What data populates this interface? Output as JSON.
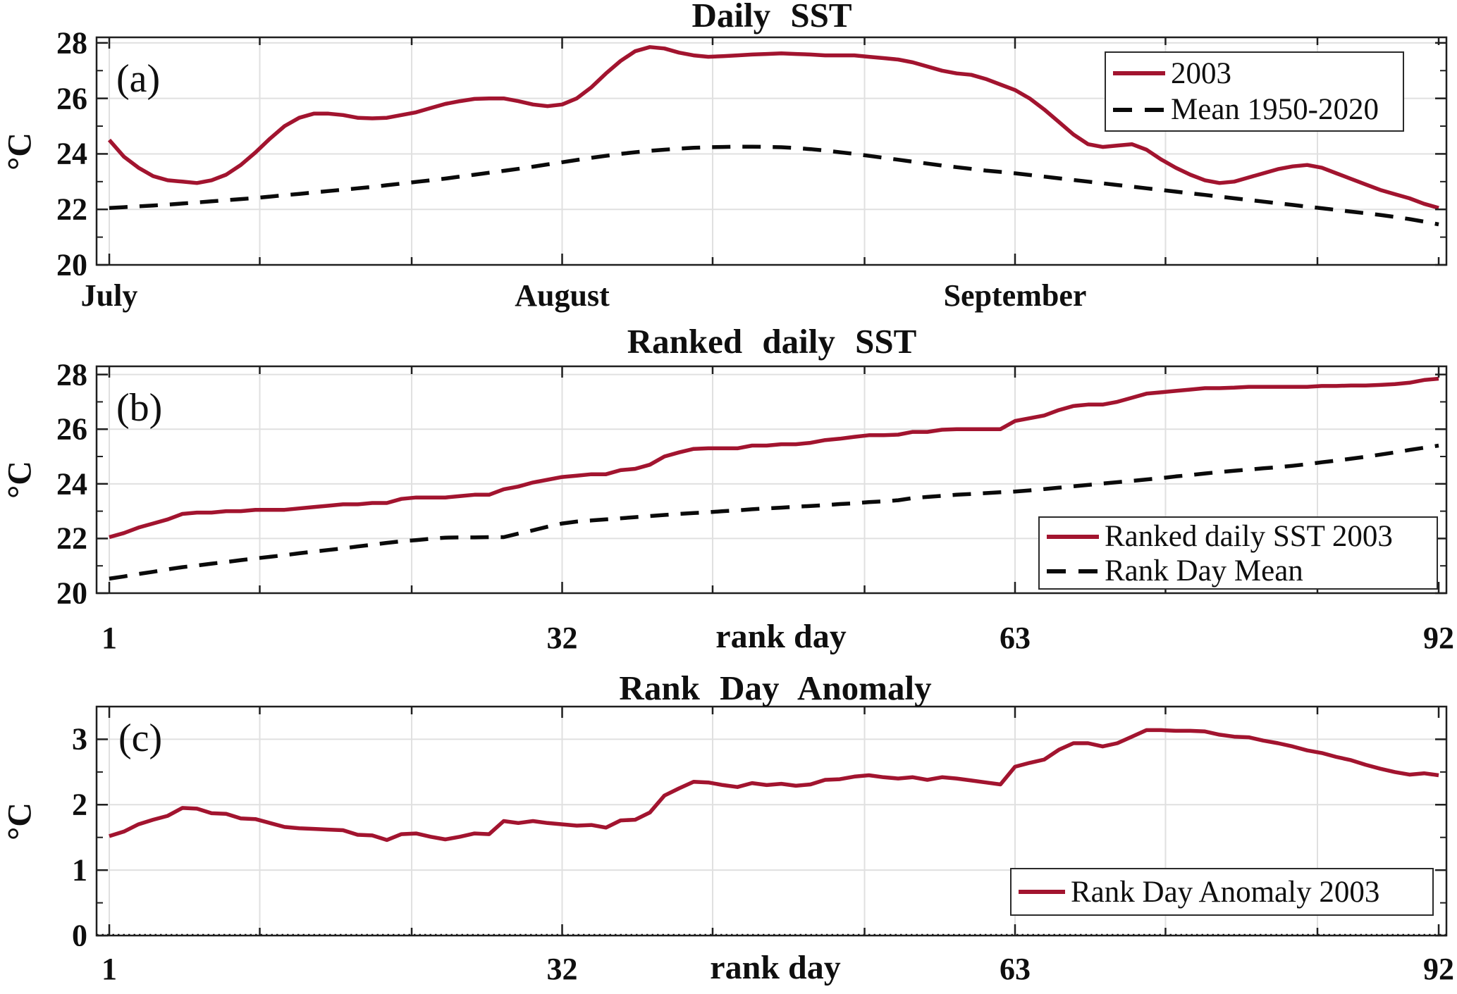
{
  "figure": {
    "background": "#ffffff",
    "accent_red": "#A2142F",
    "dashed_black": "#0a0a0a",
    "grid_color": "#e0e0e0",
    "frame_color": "#1f1f1f"
  },
  "chart_data": [
    {
      "type": "line",
      "panel_tag": "(a)",
      "title": "Daily SST",
      "ylabel": "°C",
      "xlabel": "",
      "ylim": [
        20,
        28.2
      ],
      "xlim": [
        0.13,
        92.53
      ],
      "grid": true,
      "legend_position": "upper-right",
      "x_unit": "day of season (July 1 = 1)",
      "xticks": [
        {
          "v": 1,
          "label": "July"
        },
        {
          "v": 32,
          "label": "August"
        },
        {
          "v": 63,
          "label": "September"
        }
      ],
      "yticks": [
        {
          "v": 20,
          "label": "20"
        },
        {
          "v": 22,
          "label": "22"
        },
        {
          "v": 24,
          "label": "24"
        },
        {
          "v": 26,
          "label": "26"
        },
        {
          "v": 28,
          "label": "28"
        }
      ],
      "xgrid": [
        1,
        11.3,
        21.7,
        32,
        42.3,
        52.7,
        63,
        73.3,
        83.7
      ],
      "yminor": [
        21,
        23,
        25,
        27
      ],
      "series": [
        {
          "name": "2003",
          "color": "#A2142F",
          "dash": false,
          "values": [
            24.5,
            23.9,
            23.5,
            23.2,
            23.05,
            23.0,
            22.95,
            23.05,
            23.25,
            23.6,
            24.05,
            24.55,
            25.0,
            25.3,
            25.45,
            25.45,
            25.4,
            25.3,
            25.28,
            25.3,
            25.4,
            25.5,
            25.65,
            25.8,
            25.9,
            25.98,
            26.0,
            26.0,
            25.9,
            25.78,
            25.72,
            25.78,
            26.0,
            26.4,
            26.9,
            27.35,
            27.7,
            27.85,
            27.8,
            27.65,
            27.55,
            27.5,
            27.52,
            27.55,
            27.58,
            27.6,
            27.62,
            27.6,
            27.58,
            27.55,
            27.55,
            27.55,
            27.5,
            27.45,
            27.4,
            27.3,
            27.15,
            27.0,
            26.9,
            26.85,
            26.7,
            26.5,
            26.3,
            26.0,
            25.6,
            25.15,
            24.7,
            24.35,
            24.25,
            24.3,
            24.35,
            24.15,
            23.8,
            23.5,
            23.25,
            23.05,
            22.95,
            23.0,
            23.15,
            23.3,
            23.45,
            23.55,
            23.6,
            23.5,
            23.3,
            23.1,
            22.9,
            22.7,
            22.55,
            22.4,
            22.2,
            22.05
          ]
        },
        {
          "name": "Mean 1950-2020",
          "color": "#0a0a0a",
          "dash": true,
          "values": [
            22.05,
            22.08,
            22.11,
            22.14,
            22.17,
            22.21,
            22.25,
            22.29,
            22.33,
            22.37,
            22.41,
            22.46,
            22.51,
            22.56,
            22.61,
            22.66,
            22.71,
            22.76,
            22.81,
            22.87,
            22.93,
            22.99,
            23.05,
            23.11,
            23.18,
            23.25,
            23.32,
            23.39,
            23.46,
            23.54,
            23.62,
            23.7,
            23.78,
            23.86,
            23.93,
            24.0,
            24.06,
            24.11,
            24.15,
            24.19,
            24.22,
            24.24,
            24.25,
            24.26,
            24.26,
            24.25,
            24.24,
            24.21,
            24.17,
            24.12,
            24.06,
            24.0,
            23.93,
            23.86,
            23.79,
            23.72,
            23.65,
            23.58,
            23.52,
            23.46,
            23.4,
            23.35,
            23.3,
            23.24,
            23.18,
            23.12,
            23.06,
            23.0,
            22.94,
            22.88,
            22.82,
            22.76,
            22.7,
            22.64,
            22.58,
            22.52,
            22.46,
            22.4,
            22.34,
            22.28,
            22.22,
            22.16,
            22.1,
            22.04,
            21.98,
            21.92,
            21.86,
            21.8,
            21.73,
            21.65,
            21.56,
            21.46
          ]
        }
      ]
    },
    {
      "type": "line",
      "panel_tag": "(b)",
      "title": "Ranked daily SST",
      "ylabel": "°C",
      "xlabel": "rank day",
      "ylim": [
        20,
        28.3
      ],
      "xlim": [
        0.13,
        92.53
      ],
      "grid": true,
      "legend_position": "lower-right",
      "x_unit": "rank day",
      "xticks": [
        {
          "v": 1,
          "label": "1"
        },
        {
          "v": 32,
          "label": "32"
        },
        {
          "v": 63,
          "label": "63"
        },
        {
          "v": 92,
          "label": "92"
        }
      ],
      "yticks": [
        {
          "v": 20,
          "label": "20"
        },
        {
          "v": 22,
          "label": "22"
        },
        {
          "v": 24,
          "label": "24"
        },
        {
          "v": 26,
          "label": "26"
        },
        {
          "v": 28,
          "label": "28"
        }
      ],
      "xgrid": [
        1,
        11.3,
        21.7,
        32,
        42.3,
        52.7,
        63,
        73.3,
        83.7
      ],
      "yminor": [
        21,
        23,
        25,
        27
      ],
      "series": [
        {
          "name": "Ranked daily SST 2003",
          "color": "#A2142F",
          "dash": false,
          "values": [
            22.05,
            22.2,
            22.4,
            22.55,
            22.7,
            22.9,
            22.95,
            22.95,
            23.0,
            23.0,
            23.05,
            23.05,
            23.05,
            23.1,
            23.15,
            23.2,
            23.25,
            23.25,
            23.3,
            23.3,
            23.45,
            23.5,
            23.5,
            23.5,
            23.55,
            23.6,
            23.6,
            23.8,
            23.9,
            24.05,
            24.15,
            24.25,
            24.3,
            24.35,
            24.35,
            24.5,
            24.55,
            24.7,
            25.0,
            25.15,
            25.28,
            25.3,
            25.3,
            25.3,
            25.4,
            25.4,
            25.45,
            25.45,
            25.5,
            25.6,
            25.65,
            25.72,
            25.78,
            25.78,
            25.8,
            25.9,
            25.9,
            25.98,
            26.0,
            26.0,
            26.0,
            26.0,
            26.3,
            26.4,
            26.5,
            26.7,
            26.85,
            26.9,
            26.9,
            27.0,
            27.15,
            27.3,
            27.35,
            27.4,
            27.45,
            27.5,
            27.5,
            27.52,
            27.55,
            27.55,
            27.55,
            27.55,
            27.55,
            27.58,
            27.58,
            27.6,
            27.6,
            27.62,
            27.65,
            27.7,
            27.8,
            27.85
          ]
        },
        {
          "name": "Rank Day Mean",
          "color": "#0a0a0a",
          "dash": true,
          "values": [
            20.53,
            20.61,
            20.7,
            20.78,
            20.87,
            20.95,
            21.01,
            21.08,
            21.14,
            21.21,
            21.27,
            21.33,
            21.39,
            21.46,
            21.52,
            21.58,
            21.64,
            21.71,
            21.77,
            21.84,
            21.9,
            21.94,
            21.99,
            22.03,
            22.04,
            22.04,
            22.05,
            22.05,
            22.18,
            22.3,
            22.43,
            22.55,
            22.62,
            22.66,
            22.7,
            22.74,
            22.78,
            22.82,
            22.86,
            22.9,
            22.93,
            22.96,
            23.0,
            23.03,
            23.07,
            23.1,
            23.13,
            23.16,
            23.19,
            23.22,
            23.26,
            23.29,
            23.33,
            23.36,
            23.4,
            23.48,
            23.52,
            23.56,
            23.6,
            23.63,
            23.66,
            23.69,
            23.72,
            23.76,
            23.81,
            23.86,
            23.91,
            23.96,
            24.01,
            24.06,
            24.11,
            24.16,
            24.21,
            24.27,
            24.32,
            24.38,
            24.43,
            24.48,
            24.52,
            24.57,
            24.61,
            24.66,
            24.72,
            24.79,
            24.85,
            24.92,
            24.99,
            25.07,
            25.15,
            25.24,
            25.32,
            25.4
          ]
        }
      ]
    },
    {
      "type": "line",
      "panel_tag": "(c)",
      "title": "Rank Day Anomaly",
      "ylabel": "°C",
      "xlabel": "rank day",
      "ylim": [
        0,
        3.5
      ],
      "xlim": [
        0.13,
        92.53
      ],
      "grid": true,
      "zero_line": "dotted",
      "legend_position": "lower-right",
      "x_unit": "rank day",
      "xticks": [
        {
          "v": 1,
          "label": "1"
        },
        {
          "v": 32,
          "label": "32"
        },
        {
          "v": 63,
          "label": "63"
        },
        {
          "v": 92,
          "label": "92"
        }
      ],
      "yticks": [
        {
          "v": 0,
          "label": "0"
        },
        {
          "v": 1,
          "label": "1"
        },
        {
          "v": 2,
          "label": "2"
        },
        {
          "v": 3,
          "label": "3"
        }
      ],
      "xgrid": [
        1,
        11.3,
        21.7,
        32,
        42.3,
        52.7,
        63,
        73.3,
        83.7
      ],
      "yminor": [
        0.5,
        1.5,
        2.5
      ],
      "series": [
        {
          "name": "Rank Day Anomaly 2003",
          "color": "#A2142F",
          "dash": false,
          "values": [
            1.52,
            1.59,
            1.7,
            1.77,
            1.83,
            1.95,
            1.94,
            1.87,
            1.86,
            1.79,
            1.78,
            1.72,
            1.66,
            1.64,
            1.63,
            1.62,
            1.61,
            1.54,
            1.53,
            1.46,
            1.55,
            1.56,
            1.51,
            1.47,
            1.51,
            1.56,
            1.55,
            1.75,
            1.72,
            1.75,
            1.72,
            1.7,
            1.68,
            1.69,
            1.65,
            1.76,
            1.77,
            1.88,
            2.14,
            2.25,
            2.35,
            2.34,
            2.3,
            2.27,
            2.33,
            2.3,
            2.32,
            2.29,
            2.31,
            2.38,
            2.39,
            2.43,
            2.45,
            2.42,
            2.4,
            2.42,
            2.38,
            2.42,
            2.4,
            2.37,
            2.34,
            2.31,
            2.58,
            2.64,
            2.69,
            2.84,
            2.94,
            2.94,
            2.89,
            2.94,
            3.04,
            3.14,
            3.14,
            3.13,
            3.13,
            3.12,
            3.07,
            3.04,
            3.03,
            2.98,
            2.94,
            2.89,
            2.83,
            2.79,
            2.73,
            2.68,
            2.61,
            2.55,
            2.5,
            2.46,
            2.48,
            2.45
          ]
        }
      ]
    }
  ]
}
